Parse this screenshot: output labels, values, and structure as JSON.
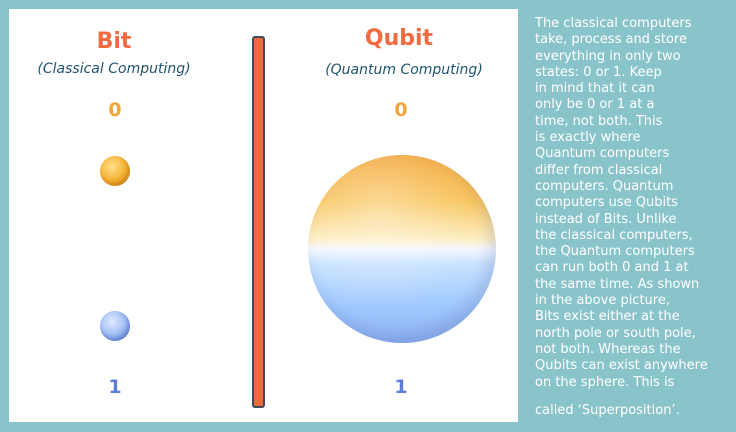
{
  "bit": {
    "title": "Bit",
    "subtitle": "(Classical Computing)",
    "state_top": "0",
    "state_bottom": "1"
  },
  "qubit": {
    "title": "Qubit",
    "subtitle": "(Quantum Computing)",
    "state_top": "0",
    "state_bottom": "1"
  },
  "colors": {
    "title": "#f06a42",
    "subtitle": "#1f5470",
    "state_0": "#f0a43a",
    "state_1": "#5b7ed8",
    "divider": "#ef6a3a",
    "background": "#8ac4cb"
  },
  "description": {
    "lines": [
      "The classical computers",
      "take, process and store",
      "everything in only two",
      "states: 0 or 1. Keep",
      "in mind that it can",
      "only be 0 or 1 at a",
      "time, not both. This",
      "is exactly where",
      "Quantum computers",
      "differ from classical",
      "computers. Quantum",
      "computers use Qubits",
      "instead of Bits. Unlike",
      "the classical computers,",
      "the Quantum computers",
      "can run both 0 and 1 at",
      "the same time. As shown",
      "in the above picture,",
      "Bits exist either at the",
      "north pole or south pole,",
      "not both. Whereas the",
      "Qubits can exist anywhere",
      "on the sphere. This is"
    ],
    "last_line": "called ‘Superposition’."
  }
}
